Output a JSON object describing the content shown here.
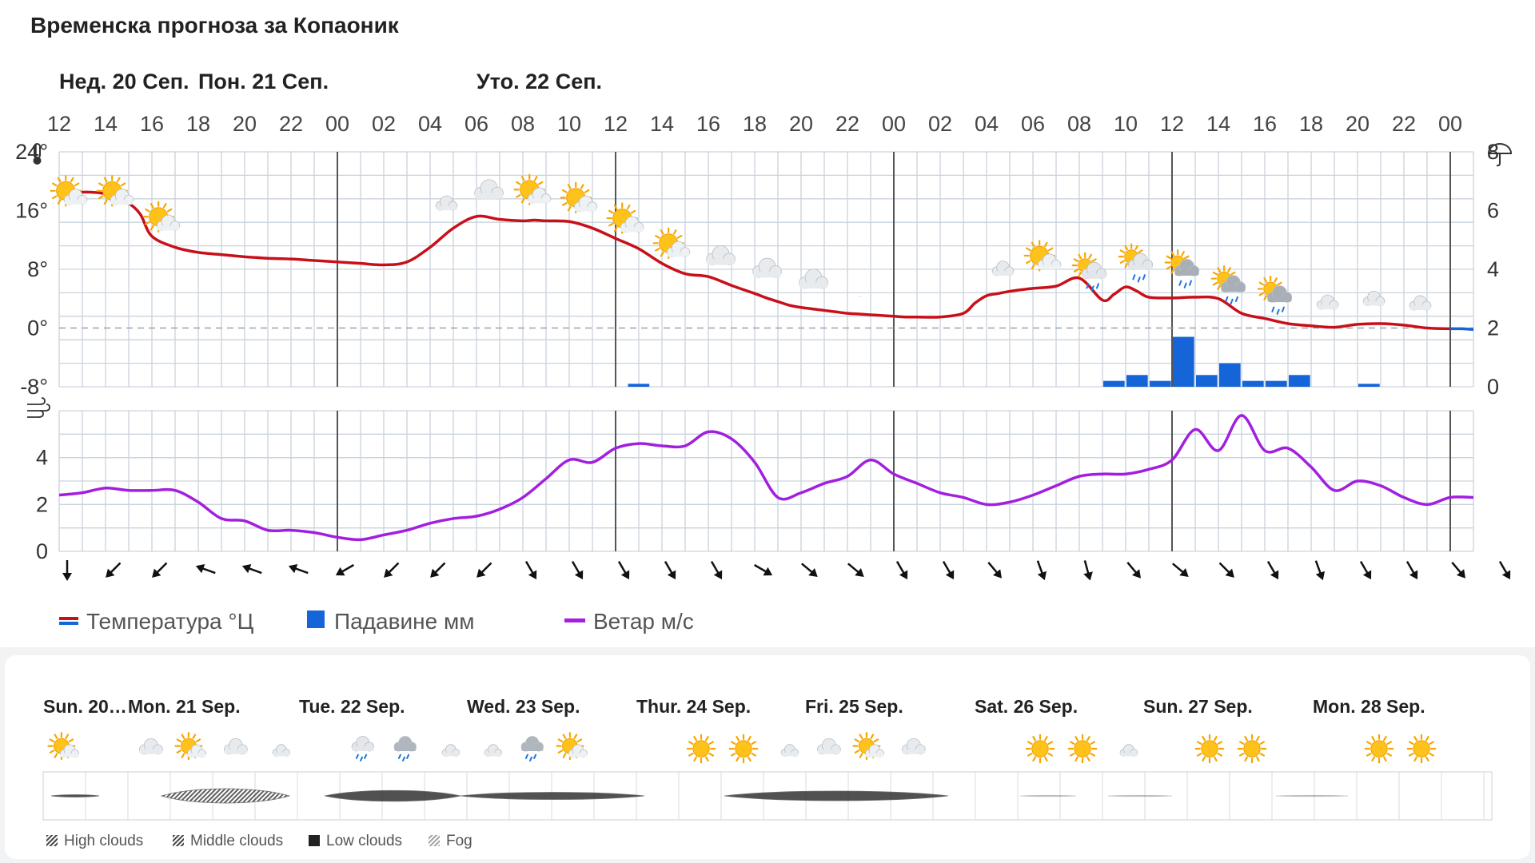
{
  "title": "Временска прогноза за Копаоник",
  "day_labels": [
    {
      "label": "Нед. 20 Сеп.",
      "hour": 0
    },
    {
      "label": "Пон. 21 Сеп.",
      "hour": 12
    },
    {
      "label": "Уто. 22 Сеп.",
      "hour": 36
    }
  ],
  "hour_labels": [
    "12",
    "14",
    "16",
    "18",
    "20",
    "22",
    "00",
    "02",
    "04",
    "06",
    "08",
    "10",
    "12",
    "14",
    "16",
    "18",
    "20",
    "22",
    "00",
    "02",
    "04",
    "06",
    "08",
    "10",
    "12",
    "14",
    "16",
    "18",
    "20",
    "22",
    "00"
  ],
  "temp_ticks": [
    "24°",
    "16°",
    "8°",
    "0°",
    "-8°"
  ],
  "precip_ticks": [
    "8",
    "6",
    "4",
    "2",
    "0"
  ],
  "wind_ticks": [
    "4",
    "2",
    "0"
  ],
  "legend": {
    "temp": "Температура °Ц",
    "precip": "Падавине мм",
    "wind": "Ветар м/с"
  },
  "colors": {
    "temp": "#c8101a",
    "precip": "#1565d8",
    "wind": "#a21fe0",
    "grid": "#c9d3dc"
  },
  "chart_data": [
    {
      "type": "line",
      "x_hours_from_sun_12": [
        0,
        2,
        4,
        5,
        6,
        7,
        8,
        10,
        12,
        14,
        16,
        17,
        18,
        20,
        22,
        24,
        26,
        28,
        30,
        32,
        34,
        36,
        38,
        40,
        41,
        42,
        44,
        46,
        48,
        50,
        52,
        54,
        56,
        58,
        60,
        61,
        62,
        63,
        64,
        65,
        66,
        67,
        68,
        69,
        70,
        71,
        72,
        73,
        74,
        76,
        78,
        79,
        80,
        81,
        82,
        84,
        86,
        88,
        90,
        91,
        92,
        93,
        94,
        96,
        98,
        100,
        102,
        104,
        106,
        108,
        110,
        112,
        114,
        116,
        118,
        120,
        121,
        122
      ],
      "series": [
        {
          "name": "Температура °Ц",
          "unit": "°C",
          "values": [
            18,
            18.5,
            18.3,
            17.8,
            17,
            15.5,
            12.5,
            11,
            10.3,
            10,
            9.7,
            9.6,
            9.5,
            9.4,
            9.2,
            9,
            8.8,
            8.6,
            9,
            11,
            13.6,
            15.2,
            14.8,
            14.6,
            14.7,
            14.6,
            14.5,
            13.6,
            12.2,
            10.8,
            8.8,
            7.4,
            7,
            5.8,
            4.7,
            4.1,
            3.6,
            3.1,
            2.8,
            2.6,
            2.4,
            2.2,
            2,
            1.9,
            1.8,
            1.7,
            1.6,
            1.5,
            1.5,
            1.5,
            2,
            3.4,
            4.4,
            4.7,
            5,
            5.4,
            5.7,
            6.8,
            3.8,
            4.6,
            5.6,
            5,
            4.2,
            4.1,
            4.2,
            4,
            2,
            1.3,
            0.6,
            0.3,
            0.1,
            0.5,
            0.6,
            0.4,
            0,
            -0.1,
            -0.1,
            -0.2
          ]
        }
      ],
      "ylim": [
        -8,
        24
      ]
    },
    {
      "type": "bar",
      "categories_hour": [
        49,
        90,
        92,
        94,
        96,
        98,
        100,
        102,
        104,
        106,
        112
      ],
      "series": [
        {
          "name": "Падавине мм",
          "unit": "mm",
          "values": [
            0.1,
            0.2,
            0.4,
            0.2,
            1.7,
            0.4,
            0.8,
            0.2,
            0.2,
            0.4,
            0.1
          ]
        }
      ],
      "ylim": [
        0,
        8
      ]
    },
    {
      "type": "line",
      "x_hours_from_sun_12": [
        0,
        2,
        4,
        6,
        8,
        10,
        12,
        14,
        16,
        18,
        20,
        22,
        24,
        26,
        28,
        30,
        32,
        34,
        36,
        38,
        40,
        42,
        44,
        46,
        48,
        50,
        52,
        54,
        56,
        58,
        60,
        62,
        64,
        66,
        68,
        70,
        72,
        74,
        76,
        78,
        80,
        82,
        84,
        86,
        88,
        90,
        92,
        94,
        96,
        98,
        100,
        102,
        104,
        106,
        108,
        110,
        112,
        114,
        116,
        118,
        120,
        122
      ],
      "series": [
        {
          "name": "Ветар м/с",
          "unit": "m/s",
          "values": [
            2.4,
            2.5,
            2.7,
            2.6,
            2.6,
            2.6,
            2.1,
            1.4,
            1.3,
            0.9,
            0.9,
            0.8,
            0.6,
            0.5,
            0.7,
            0.9,
            1.2,
            1.4,
            1.5,
            1.8,
            2.3,
            3.1,
            3.9,
            3.8,
            4.4,
            4.6,
            4.5,
            4.5,
            5.1,
            4.8,
            3.8,
            2.3,
            2.5,
            2.9,
            3.2,
            3.9,
            3.3,
            2.9,
            2.5,
            2.3,
            2,
            2.1,
            2.4,
            2.8,
            3.2,
            3.3,
            3.3,
            3.5,
            3.9,
            5.2,
            4.3,
            5.8,
            4.3,
            4.4,
            3.6,
            2.6,
            3,
            2.8,
            2.3,
            2,
            2.3,
            2.3
          ]
        }
      ],
      "ylim": [
        0,
        6
      ]
    }
  ],
  "wind_dirs_deg": [
    0,
    45,
    45,
    110,
    110,
    110,
    60,
    45,
    45,
    45,
    330,
    330,
    330,
    330,
    330,
    300,
    310,
    310,
    330,
    330,
    320,
    340,
    345,
    320,
    310,
    315,
    330,
    340,
    330,
    330,
    320,
    330
  ],
  "top_icons": [
    "partly-sunny",
    "partly-sunny",
    "partly-sunny",
    "moon",
    "moon",
    "moon",
    "moon",
    "moon",
    "moon-cloud",
    "cloud",
    "partly-sunny",
    "partly-sunny",
    "partly-sunny",
    "partly-sunny",
    "cloud",
    "cloud",
    "cloud",
    "moon",
    "moon",
    "moon",
    "moon-cloud",
    "partly-sunny",
    "sun-cloud-rain",
    "sun-cloud-rain",
    "sun-dark-cloud-rain",
    "sun-dark-cloud-rain",
    "sun-dark-cloud-rain",
    "moon-cloud",
    "moon-cloud",
    "moon-cloud"
  ],
  "week": {
    "days": [
      "Sun. 20…",
      "Mon. 21 Sep.",
      "Tue. 22 Sep.",
      "Wed. 23 Sep.",
      "Thur. 24 Sep.",
      "Fri. 25 Sep.",
      "Sat. 26 Sep.",
      "Sun. 27 Sep.",
      "Mon. 28 Sep."
    ],
    "icons": [
      "partly-sunny",
      "moon",
      "cloud",
      "partly-sunny",
      "cloud",
      "moon-cloud",
      "moon",
      "cloud-rain",
      "dark-cloud-rain",
      "moon-cloud",
      "moon-cloud",
      "dark-cloud-rain",
      "partly-sunny",
      "moon",
      "moon",
      "sun",
      "sun",
      "moon-cloud",
      "cloud",
      "partly-sunny",
      "cloud",
      "moon",
      "moon",
      "sun",
      "sun",
      "moon-cloud",
      "moon",
      "sun",
      "sun",
      "moon",
      "moon",
      "sun",
      "sun",
      "moon",
      "moon"
    ],
    "legend": [
      "High clouds",
      "Middle clouds",
      "Low clouds",
      "Fog"
    ]
  }
}
